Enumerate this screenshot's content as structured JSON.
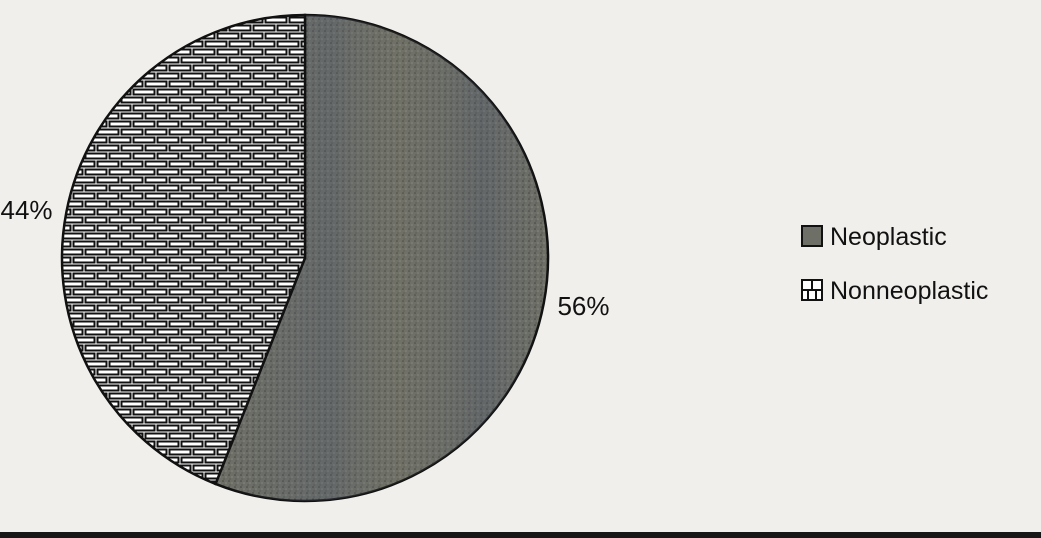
{
  "chart_data": {
    "type": "pie",
    "title": "",
    "slices": [
      {
        "label": "Neoplastic",
        "value": 56,
        "display": "56%",
        "color": "#6e6f66",
        "pattern": "speckled"
      },
      {
        "label": "Nonneoplastic",
        "value": 44,
        "display": "44%",
        "color": "#ffffff",
        "pattern": "brick"
      }
    ],
    "legend_position": "right"
  }
}
